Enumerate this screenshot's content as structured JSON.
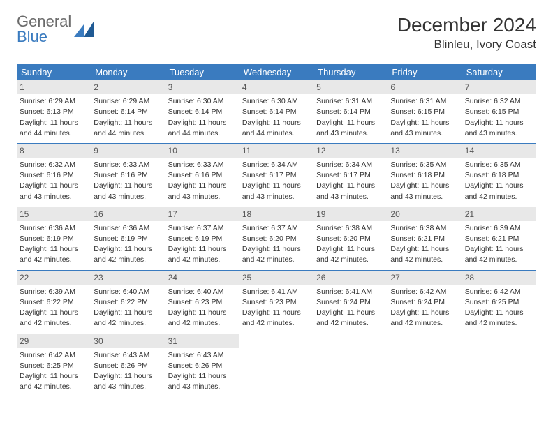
{
  "logo": {
    "line1": "General",
    "line2": "Blue"
  },
  "colors": {
    "accent": "#3a7bbf",
    "daynum_bg": "#e8e8e8",
    "text": "#333333",
    "logo_gray": "#6b6b6b"
  },
  "title": {
    "month": "December 2024",
    "location": "Blinleu, Ivory Coast"
  },
  "weekdays": [
    "Sunday",
    "Monday",
    "Tuesday",
    "Wednesday",
    "Thursday",
    "Friday",
    "Saturday"
  ],
  "weeks": [
    [
      {
        "n": "1",
        "sr": "Sunrise: 6:29 AM",
        "ss": "Sunset: 6:13 PM",
        "d1": "Daylight: 11 hours",
        "d2": "and 44 minutes."
      },
      {
        "n": "2",
        "sr": "Sunrise: 6:29 AM",
        "ss": "Sunset: 6:14 PM",
        "d1": "Daylight: 11 hours",
        "d2": "and 44 minutes."
      },
      {
        "n": "3",
        "sr": "Sunrise: 6:30 AM",
        "ss": "Sunset: 6:14 PM",
        "d1": "Daylight: 11 hours",
        "d2": "and 44 minutes."
      },
      {
        "n": "4",
        "sr": "Sunrise: 6:30 AM",
        "ss": "Sunset: 6:14 PM",
        "d1": "Daylight: 11 hours",
        "d2": "and 44 minutes."
      },
      {
        "n": "5",
        "sr": "Sunrise: 6:31 AM",
        "ss": "Sunset: 6:14 PM",
        "d1": "Daylight: 11 hours",
        "d2": "and 43 minutes."
      },
      {
        "n": "6",
        "sr": "Sunrise: 6:31 AM",
        "ss": "Sunset: 6:15 PM",
        "d1": "Daylight: 11 hours",
        "d2": "and 43 minutes."
      },
      {
        "n": "7",
        "sr": "Sunrise: 6:32 AM",
        "ss": "Sunset: 6:15 PM",
        "d1": "Daylight: 11 hours",
        "d2": "and 43 minutes."
      }
    ],
    [
      {
        "n": "8",
        "sr": "Sunrise: 6:32 AM",
        "ss": "Sunset: 6:16 PM",
        "d1": "Daylight: 11 hours",
        "d2": "and 43 minutes."
      },
      {
        "n": "9",
        "sr": "Sunrise: 6:33 AM",
        "ss": "Sunset: 6:16 PM",
        "d1": "Daylight: 11 hours",
        "d2": "and 43 minutes."
      },
      {
        "n": "10",
        "sr": "Sunrise: 6:33 AM",
        "ss": "Sunset: 6:16 PM",
        "d1": "Daylight: 11 hours",
        "d2": "and 43 minutes."
      },
      {
        "n": "11",
        "sr": "Sunrise: 6:34 AM",
        "ss": "Sunset: 6:17 PM",
        "d1": "Daylight: 11 hours",
        "d2": "and 43 minutes."
      },
      {
        "n": "12",
        "sr": "Sunrise: 6:34 AM",
        "ss": "Sunset: 6:17 PM",
        "d1": "Daylight: 11 hours",
        "d2": "and 43 minutes."
      },
      {
        "n": "13",
        "sr": "Sunrise: 6:35 AM",
        "ss": "Sunset: 6:18 PM",
        "d1": "Daylight: 11 hours",
        "d2": "and 43 minutes."
      },
      {
        "n": "14",
        "sr": "Sunrise: 6:35 AM",
        "ss": "Sunset: 6:18 PM",
        "d1": "Daylight: 11 hours",
        "d2": "and 42 minutes."
      }
    ],
    [
      {
        "n": "15",
        "sr": "Sunrise: 6:36 AM",
        "ss": "Sunset: 6:19 PM",
        "d1": "Daylight: 11 hours",
        "d2": "and 42 minutes."
      },
      {
        "n": "16",
        "sr": "Sunrise: 6:36 AM",
        "ss": "Sunset: 6:19 PM",
        "d1": "Daylight: 11 hours",
        "d2": "and 42 minutes."
      },
      {
        "n": "17",
        "sr": "Sunrise: 6:37 AM",
        "ss": "Sunset: 6:19 PM",
        "d1": "Daylight: 11 hours",
        "d2": "and 42 minutes."
      },
      {
        "n": "18",
        "sr": "Sunrise: 6:37 AM",
        "ss": "Sunset: 6:20 PM",
        "d1": "Daylight: 11 hours",
        "d2": "and 42 minutes."
      },
      {
        "n": "19",
        "sr": "Sunrise: 6:38 AM",
        "ss": "Sunset: 6:20 PM",
        "d1": "Daylight: 11 hours",
        "d2": "and 42 minutes."
      },
      {
        "n": "20",
        "sr": "Sunrise: 6:38 AM",
        "ss": "Sunset: 6:21 PM",
        "d1": "Daylight: 11 hours",
        "d2": "and 42 minutes."
      },
      {
        "n": "21",
        "sr": "Sunrise: 6:39 AM",
        "ss": "Sunset: 6:21 PM",
        "d1": "Daylight: 11 hours",
        "d2": "and 42 minutes."
      }
    ],
    [
      {
        "n": "22",
        "sr": "Sunrise: 6:39 AM",
        "ss": "Sunset: 6:22 PM",
        "d1": "Daylight: 11 hours",
        "d2": "and 42 minutes."
      },
      {
        "n": "23",
        "sr": "Sunrise: 6:40 AM",
        "ss": "Sunset: 6:22 PM",
        "d1": "Daylight: 11 hours",
        "d2": "and 42 minutes."
      },
      {
        "n": "24",
        "sr": "Sunrise: 6:40 AM",
        "ss": "Sunset: 6:23 PM",
        "d1": "Daylight: 11 hours",
        "d2": "and 42 minutes."
      },
      {
        "n": "25",
        "sr": "Sunrise: 6:41 AM",
        "ss": "Sunset: 6:23 PM",
        "d1": "Daylight: 11 hours",
        "d2": "and 42 minutes."
      },
      {
        "n": "26",
        "sr": "Sunrise: 6:41 AM",
        "ss": "Sunset: 6:24 PM",
        "d1": "Daylight: 11 hours",
        "d2": "and 42 minutes."
      },
      {
        "n": "27",
        "sr": "Sunrise: 6:42 AM",
        "ss": "Sunset: 6:24 PM",
        "d1": "Daylight: 11 hours",
        "d2": "and 42 minutes."
      },
      {
        "n": "28",
        "sr": "Sunrise: 6:42 AM",
        "ss": "Sunset: 6:25 PM",
        "d1": "Daylight: 11 hours",
        "d2": "and 42 minutes."
      }
    ],
    [
      {
        "n": "29",
        "sr": "Sunrise: 6:42 AM",
        "ss": "Sunset: 6:25 PM",
        "d1": "Daylight: 11 hours",
        "d2": "and 42 minutes."
      },
      {
        "n": "30",
        "sr": "Sunrise: 6:43 AM",
        "ss": "Sunset: 6:26 PM",
        "d1": "Daylight: 11 hours",
        "d2": "and 43 minutes."
      },
      {
        "n": "31",
        "sr": "Sunrise: 6:43 AM",
        "ss": "Sunset: 6:26 PM",
        "d1": "Daylight: 11 hours",
        "d2": "and 43 minutes."
      },
      {
        "n": "",
        "sr": "",
        "ss": "",
        "d1": "",
        "d2": ""
      },
      {
        "n": "",
        "sr": "",
        "ss": "",
        "d1": "",
        "d2": ""
      },
      {
        "n": "",
        "sr": "",
        "ss": "",
        "d1": "",
        "d2": ""
      },
      {
        "n": "",
        "sr": "",
        "ss": "",
        "d1": "",
        "d2": ""
      }
    ]
  ]
}
